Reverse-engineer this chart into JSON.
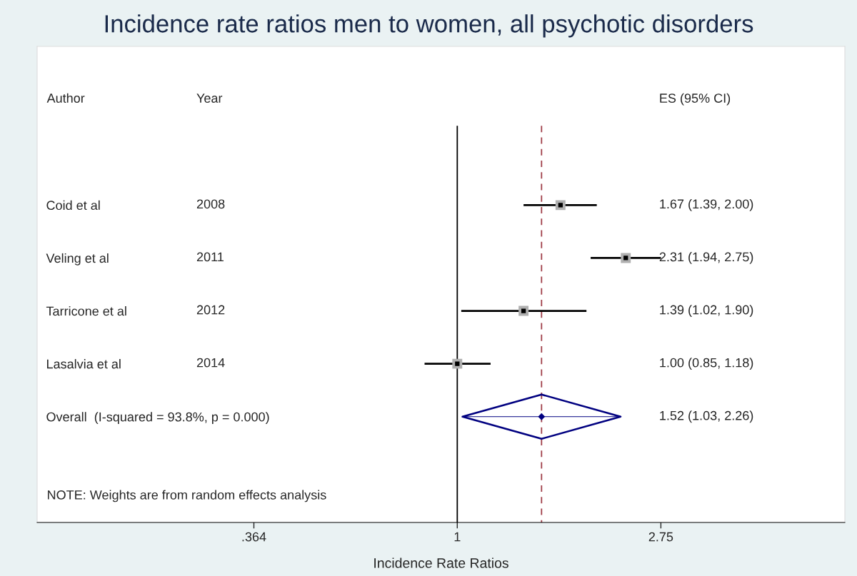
{
  "chart_data": {
    "type": "scatter",
    "title": "Incidence rate ratios men to women, all psychotic disorders",
    "xlabel": "Incidence Rate Ratios",
    "categories": [
      "Coid et al",
      "Veling et al",
      "Tarricone et al",
      "Lasalvia et al",
      "Overall  (I-squared = 93.8%, p = 0.000)"
    ],
    "series": [
      {
        "color": "#000000",
        "marker": "square",
        "values": [
          1.67,
          2.31,
          1.39,
          1.0,
          null
        ],
        "errors": [
          [
            1.39,
            2.0
          ],
          [
            1.94,
            2.75
          ],
          [
            1.02,
            1.9
          ],
          [
            0.85,
            1.18
          ],
          null
        ]
      },
      {
        "color": "#000080",
        "marker": "diamond",
        "values": [
          null,
          null,
          null,
          null,
          1.52
        ],
        "errors": [
          null,
          null,
          null,
          null,
          [
            1.03,
            2.26
          ]
        ]
      }
    ],
    "log": "x",
    "xlim": [
      0.124,
      6.86
    ],
    "xticks": [
      {
        "value": 0.364,
        "label": ".364"
      },
      {
        "value": 1,
        "label": "1"
      },
      {
        "value": 2.75,
        "label": "2.75"
      }
    ],
    "orientation": "horizontal",
    "ref_lines": [
      {
        "axis": "x",
        "value": 1,
        "color": "#000000",
        "line_style": "solid"
      },
      {
        "axis": "x",
        "value": 1.52,
        "color": "#a0404a",
        "line_style": "dashed"
      }
    ],
    "annotations": [
      "Author",
      "Year",
      "ES (95% CI)",
      "2008",
      "2011",
      "2012",
      "2014",
      "1.67 (1.39, 2.00)",
      "2.31 (1.94, 2.75)",
      "1.39 (1.02, 1.90)",
      "1.00 (0.85, 1.18)",
      "1.52 (1.03, 2.26)",
      "NOTE: Weights are from random effects analysis"
    ]
  }
}
